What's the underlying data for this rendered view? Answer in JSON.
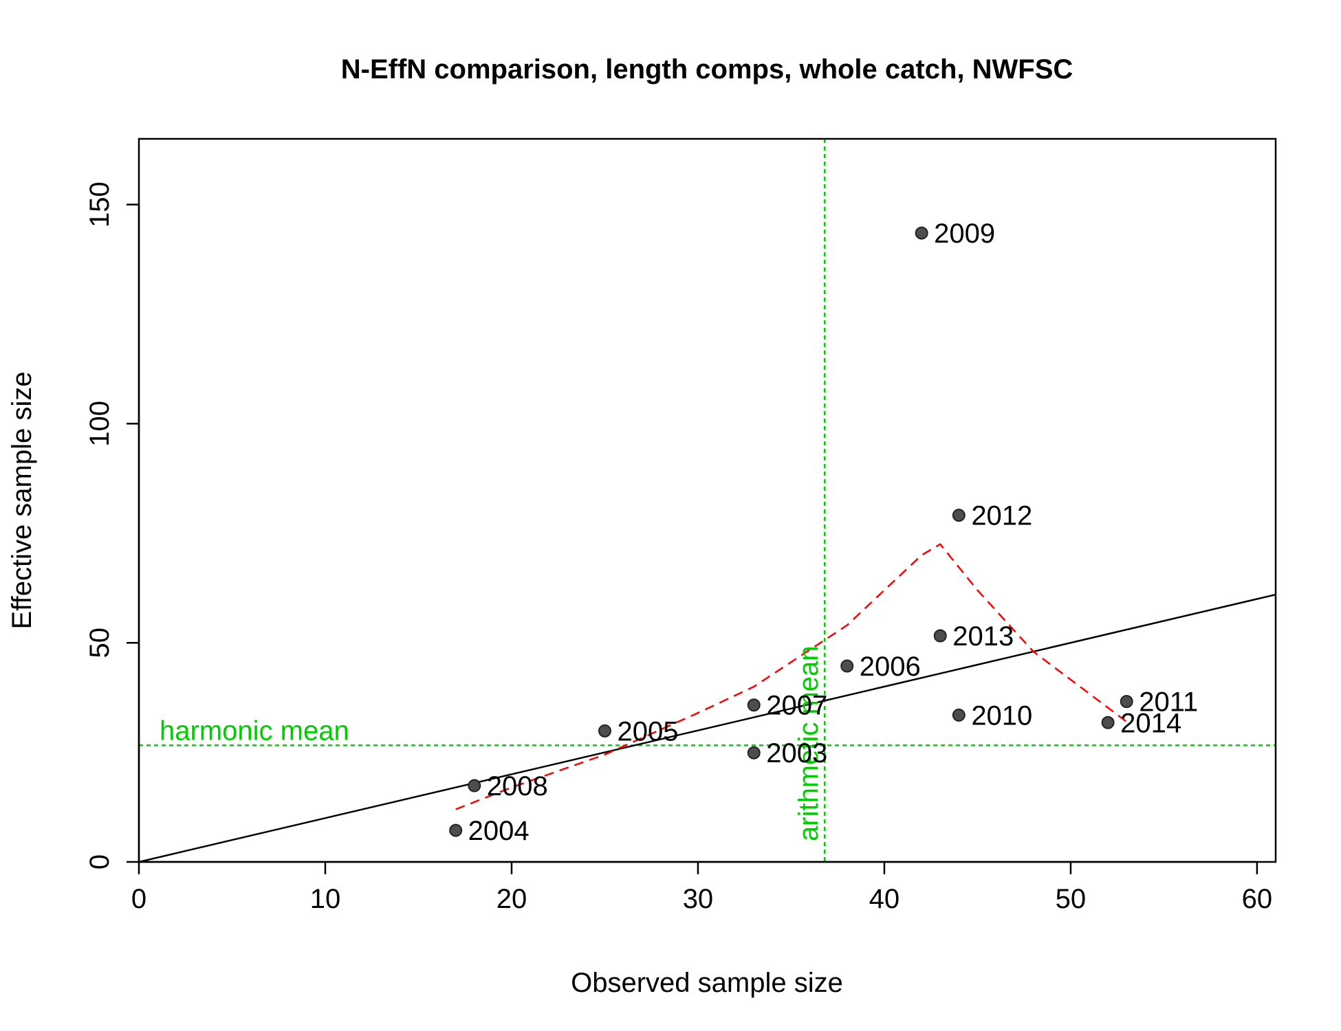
{
  "chart_data": {
    "type": "scatter",
    "title": "N-EffN comparison, length comps, whole catch, NWFSC",
    "xlabel": "Observed sample size",
    "ylabel": "Effective sample size",
    "xlim": [
      0,
      61
    ],
    "ylim": [
      0,
      165
    ],
    "x_ticks": [
      0,
      10,
      20,
      30,
      40,
      50,
      60
    ],
    "y_ticks": [
      0,
      50,
      100,
      150
    ],
    "points": [
      {
        "label": "2003",
        "x": 33,
        "y": 24.9
      },
      {
        "label": "2004",
        "x": 17,
        "y": 7.2
      },
      {
        "label": "2005",
        "x": 25,
        "y": 29.9
      },
      {
        "label": "2006",
        "x": 38,
        "y": 44.7
      },
      {
        "label": "2007",
        "x": 33,
        "y": 35.8
      },
      {
        "label": "2008",
        "x": 18,
        "y": 17.4
      },
      {
        "label": "2009",
        "x": 42,
        "y": 143.5
      },
      {
        "label": "2010",
        "x": 44,
        "y": 33.5
      },
      {
        "label": "2011",
        "x": 53,
        "y": 36.6
      },
      {
        "label": "2012",
        "x": 44,
        "y": 79.1
      },
      {
        "label": "2013",
        "x": 43,
        "y": 51.6
      },
      {
        "label": "2014",
        "x": 52,
        "y": 31.8
      }
    ],
    "reference_line": {
      "type": "one-to-one",
      "slope": 1,
      "intercept": 0,
      "color": "#000000"
    },
    "smoother": {
      "style": "dashed",
      "color": "#ff0000",
      "x": [
        17,
        20,
        25,
        30,
        33,
        38,
        42,
        43,
        45,
        48,
        53
      ],
      "y": [
        12,
        17,
        24.5,
        34,
        40,
        54,
        70,
        72.5,
        62,
        48,
        32
      ]
    },
    "harmonic_mean": {
      "label": "harmonic mean",
      "value": 26.6,
      "color": "#00cd00"
    },
    "arithmetic_mean": {
      "label": "arithmetic mean",
      "value": 36.8,
      "color": "#00cd00"
    },
    "point_color": "#4d4d4d",
    "grid": false,
    "legend": "none"
  }
}
